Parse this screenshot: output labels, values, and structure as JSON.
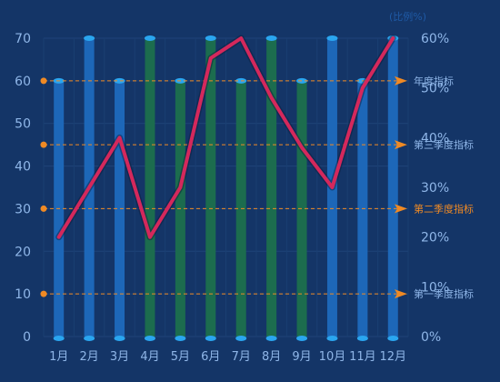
{
  "chart_data": {
    "type": "bar",
    "categories": [
      "1月",
      "2月",
      "3月",
      "4月",
      "5月",
      "6月",
      "7月",
      "8月",
      "9月",
      "10月",
      "11月",
      "12月"
    ],
    "series": [
      {
        "values": [
          60,
          70,
          60,
          70,
          60,
          70,
          60,
          70,
          60,
          70,
          60,
          70
        ],
        "colors": [
          "#1d67b8",
          "#1d67b8",
          "#1d67b8",
          "#1c6c4e",
          "#1c6c4e",
          "#1c6c4e",
          "#1c6c4e",
          "#1c6c4e",
          "#1c6c4e",
          "#1d67b8",
          "#1d67b8",
          "#1d67b8"
        ],
        "cap_color": "#2aa6f0"
      },
      {
        "type": "line",
        "axis": "right",
        "values": [
          20,
          30,
          40,
          20,
          30,
          56,
          60,
          48,
          38,
          30,
          50,
          60
        ],
        "color": "#d4285c"
      }
    ],
    "ylim": [
      0,
      70
    ],
    "yticks": [
      0,
      10,
      20,
      30,
      40,
      50,
      60,
      70
    ],
    "y2lim": [
      0,
      60
    ],
    "y2ticks": [
      "0%",
      "10%",
      "20%",
      "30%",
      "40%",
      "50%",
      "60%"
    ],
    "y2unit": "(比例%)",
    "markLines": [
      {
        "value": 60,
        "label": "年度指标"
      },
      {
        "value": 45,
        "label": "第三季度指标"
      },
      {
        "value": 30,
        "label": "第二季度指标",
        "highlight": true
      },
      {
        "value": 10,
        "label": "第一季度指标"
      }
    ],
    "markLineColor": "#f08a24",
    "highlightLabelColor": "#f08a24",
    "grid": true
  }
}
